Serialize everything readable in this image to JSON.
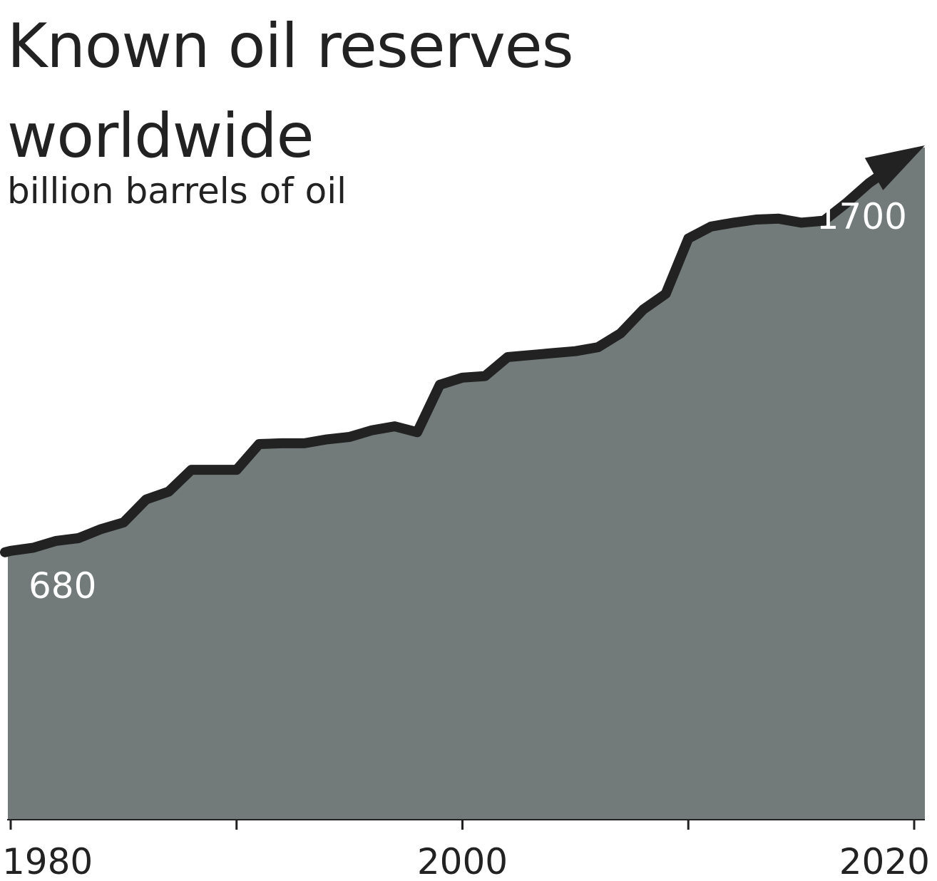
{
  "chart_data": {
    "type": "area",
    "title": "Known oil reserves worldwide",
    "subtitle": "billion barrels of oil",
    "xlabel": "",
    "ylabel": "",
    "x": [
      1980,
      1981,
      1982,
      1983,
      1984,
      1985,
      1986,
      1987,
      1988,
      1989,
      1990,
      1991,
      1992,
      1993,
      1994,
      1995,
      1996,
      1997,
      1998,
      1999,
      2000,
      2001,
      2002,
      2003,
      2004,
      2005,
      2006,
      2007,
      2008,
      2009,
      2010,
      2011,
      2012,
      2013,
      2014,
      2015,
      2016,
      2017,
      2018,
      2019,
      2020
    ],
    "series": [
      {
        "values": [
          680,
          688,
          705,
          712,
          735,
          752,
          810,
          830,
          885,
          885,
          885,
          950,
          952,
          952,
          962,
          968,
          985,
          995,
          980,
          1100,
          1118,
          1122,
          1170,
          1175,
          1180,
          1185,
          1195,
          1230,
          1290,
          1330,
          1470,
          1500,
          1510,
          1518,
          1520,
          1510,
          1515,
          1560,
          1610,
          1650,
          1700
        ]
      }
    ],
    "xlim": [
      1980,
      2020
    ],
    "ylim": [
      0,
      1700
    ],
    "x_ticks": [
      1980,
      1990,
      2000,
      2010,
      2020
    ],
    "x_tick_labels": [
      "1980",
      "",
      "2000",
      "",
      "2020"
    ],
    "annotations": [
      {
        "x": 1980,
        "text": "680"
      },
      {
        "x": 2020,
        "text": "1700"
      }
    ],
    "grid": false,
    "legend": "none",
    "end_marker": "arrow",
    "colors": {
      "area": "#727b79",
      "line": "#222222",
      "annotation_text": "#ffffff",
      "axis": "#222222"
    }
  }
}
